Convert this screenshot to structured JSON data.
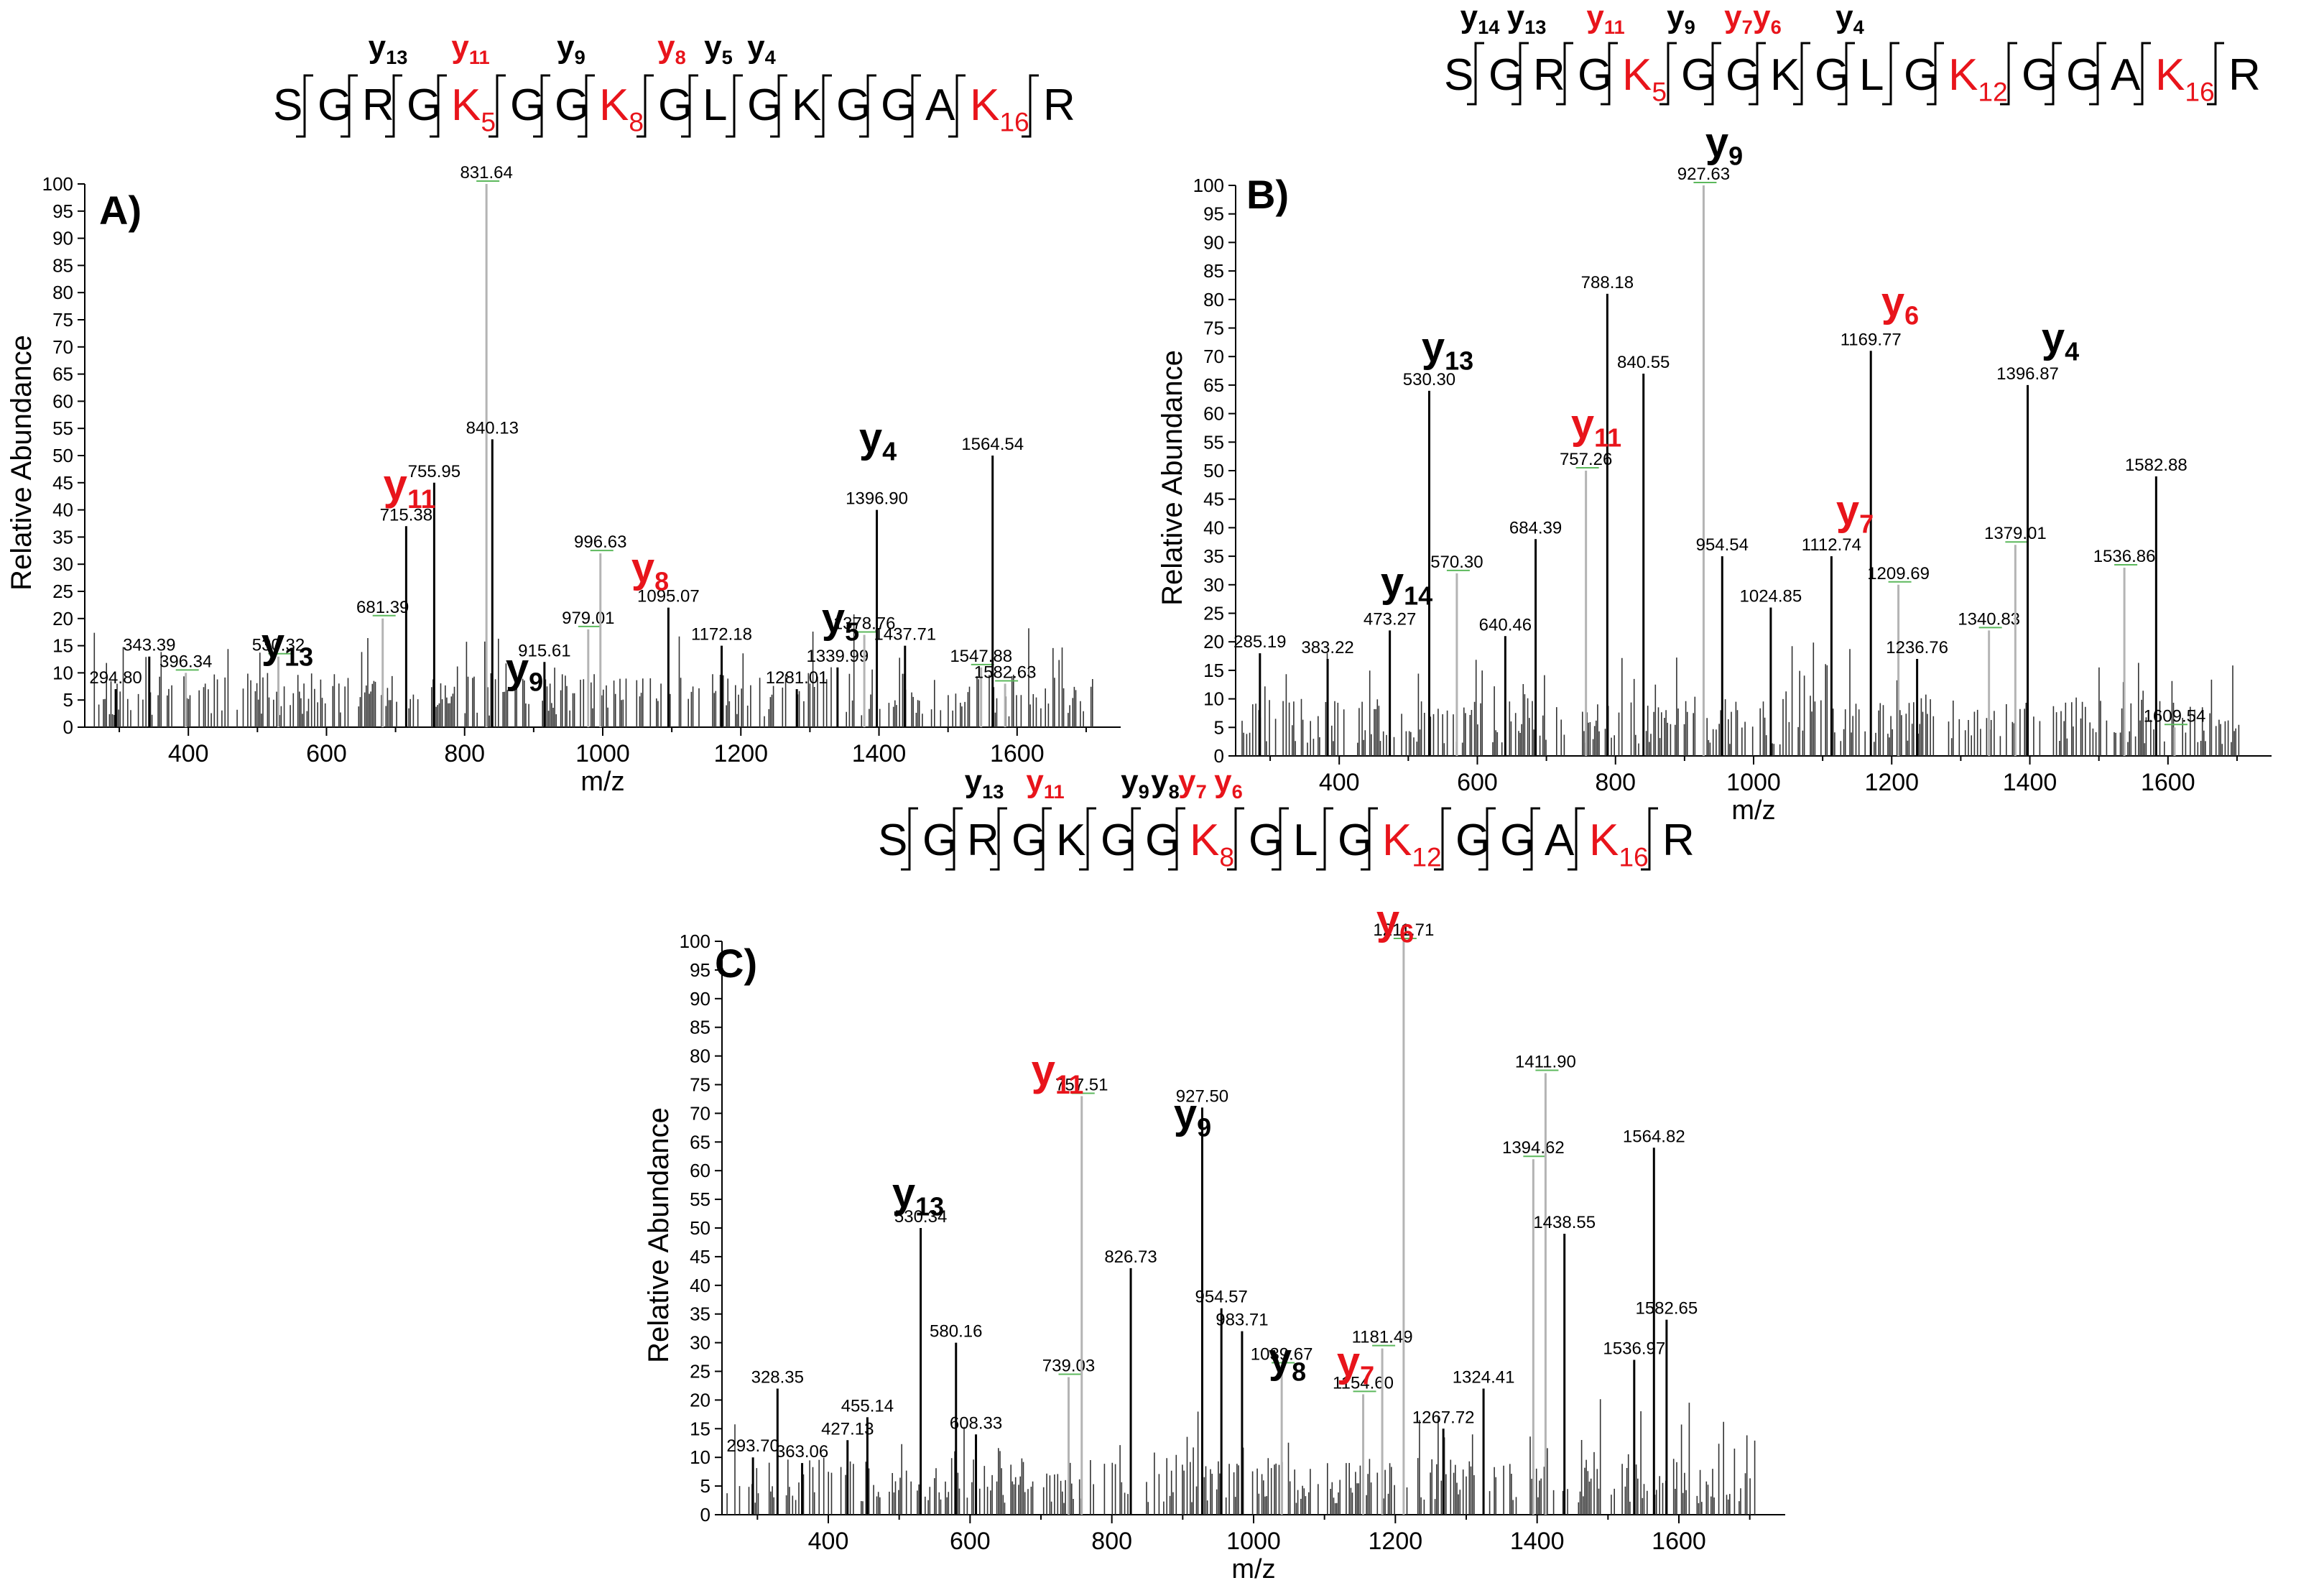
{
  "colors": {
    "black": "#000000",
    "red": "#e8141b",
    "grey": "#b4b4b4",
    "green": "#5cb85c"
  },
  "chart_data": [
    {
      "type": "bar",
      "panel_label": "A)",
      "xlabel": "m/z",
      "ylabel": "Relative Abundance",
      "xlim": [
        250,
        1750
      ],
      "ylim": [
        0,
        100
      ],
      "x_ticks": [
        400,
        600,
        800,
        1000,
        1200,
        1400,
        1600
      ],
      "y_ticks": [
        0,
        5,
        10,
        15,
        20,
        25,
        30,
        35,
        40,
        45,
        50,
        55,
        60,
        65,
        70,
        75,
        80,
        85,
        90,
        95,
        100
      ],
      "sequence": [
        {
          "aa": "S",
          "red": false
        },
        {
          "aa": "G",
          "red": false
        },
        {
          "aa": "R",
          "red": false
        },
        {
          "aa": "G",
          "red": false
        },
        {
          "aa": "K",
          "red": true,
          "sub": "5"
        },
        {
          "aa": "G",
          "red": false
        },
        {
          "aa": "G",
          "red": false
        },
        {
          "aa": "K",
          "red": true,
          "sub": "8"
        },
        {
          "aa": "G",
          "red": false
        },
        {
          "aa": "L",
          "red": false
        },
        {
          "aa": "G",
          "red": false
        },
        {
          "aa": "K",
          "red": false
        },
        {
          "aa": "G",
          "red": false
        },
        {
          "aa": "G",
          "red": false
        },
        {
          "aa": "A",
          "red": false
        },
        {
          "aa": "K",
          "red": true,
          "sub": "16"
        },
        {
          "aa": "R",
          "red": false
        }
      ],
      "sequence_ions": [
        {
          "ion": "y",
          "sub": "13",
          "red": false
        },
        {
          "ion": "y",
          "sub": "11",
          "red": true
        },
        {
          "ion": "y",
          "sub": "9",
          "red": false
        },
        {
          "ion": "y",
          "sub": "8",
          "red": true
        },
        {
          "ion": "y",
          "sub": "5",
          "red": false
        },
        {
          "ion": "y",
          "sub": "4",
          "red": false
        }
      ],
      "peaks": [
        {
          "mz": 294.8,
          "intensity": 7,
          "label": "294.80"
        },
        {
          "mz": 343.39,
          "intensity": 13,
          "label": "343.39"
        },
        {
          "mz": 396.34,
          "intensity": 10,
          "label": "396.34",
          "grey": true
        },
        {
          "mz": 530.32,
          "intensity": 13,
          "label": "530.32",
          "grey": true
        },
        {
          "mz": 681.39,
          "intensity": 20,
          "label": "681.39",
          "grey": true
        },
        {
          "mz": 715.38,
          "intensity": 37,
          "label": "715.38"
        },
        {
          "mz": 755.95,
          "intensity": 45,
          "label": "755.95"
        },
        {
          "mz": 831.64,
          "intensity": 100,
          "label": "831.64",
          "grey": true
        },
        {
          "mz": 840.13,
          "intensity": 53,
          "label": "840.13"
        },
        {
          "mz": 915.61,
          "intensity": 12,
          "label": "915.61"
        },
        {
          "mz": 979.01,
          "intensity": 18,
          "label": "979.01",
          "grey": true
        },
        {
          "mz": 996.63,
          "intensity": 32,
          "label": "996.63",
          "grey": true
        },
        {
          "mz": 1095.07,
          "intensity": 22,
          "label": "1095.07"
        },
        {
          "mz": 1172.18,
          "intensity": 15,
          "label": "1172.18"
        },
        {
          "mz": 1281.01,
          "intensity": 7,
          "label": "1281.01"
        },
        {
          "mz": 1339.99,
          "intensity": 11,
          "label": "1339.99"
        },
        {
          "mz": 1378.76,
          "intensity": 17,
          "label": "1378.76",
          "grey": true
        },
        {
          "mz": 1396.9,
          "intensity": 40,
          "label": "1396.90"
        },
        {
          "mz": 1437.71,
          "intensity": 15,
          "label": "1437.71"
        },
        {
          "mz": 1547.88,
          "intensity": 11,
          "label": "1547.88",
          "grey": true
        },
        {
          "mz": 1564.54,
          "intensity": 50,
          "label": "1564.54"
        },
        {
          "mz": 1582.63,
          "intensity": 8,
          "label": "1582.63",
          "grey": true
        }
      ],
      "ion_annotations": [
        {
          "ion": "y",
          "sub": "11",
          "red": true,
          "mz": 715.38
        },
        {
          "ion": "y",
          "sub": "13",
          "red": false,
          "mz": 530.32
        },
        {
          "ion": "y",
          "sub": "9",
          "red": false,
          "mz": 915.61
        },
        {
          "ion": "y",
          "sub": "8",
          "red": true,
          "mz": 1095.07
        },
        {
          "ion": "y",
          "sub": "5",
          "red": false,
          "mz": 1378.76
        },
        {
          "ion": "y",
          "sub": "4",
          "red": false,
          "mz": 1396.9
        }
      ]
    },
    {
      "type": "bar",
      "panel_label": "B)",
      "xlabel": "m/z",
      "ylabel": "Relative Abundance",
      "xlim": [
        250,
        1750
      ],
      "ylim": [
        0,
        100
      ],
      "x_ticks": [
        400,
        600,
        800,
        1000,
        1200,
        1400,
        1600
      ],
      "y_ticks": [
        0,
        5,
        10,
        15,
        20,
        25,
        30,
        35,
        40,
        45,
        50,
        55,
        60,
        65,
        70,
        75,
        80,
        85,
        90,
        95,
        100
      ],
      "sequence": [
        {
          "aa": "S",
          "red": false
        },
        {
          "aa": "G",
          "red": false
        },
        {
          "aa": "R",
          "red": false
        },
        {
          "aa": "G",
          "red": false
        },
        {
          "aa": "K",
          "red": true,
          "sub": "5"
        },
        {
          "aa": "G",
          "red": false
        },
        {
          "aa": "G",
          "red": false
        },
        {
          "aa": "K",
          "red": false
        },
        {
          "aa": "G",
          "red": false
        },
        {
          "aa": "L",
          "red": false
        },
        {
          "aa": "G",
          "red": false
        },
        {
          "aa": "K",
          "red": true,
          "sub": "12"
        },
        {
          "aa": "G",
          "red": false
        },
        {
          "aa": "G",
          "red": false
        },
        {
          "aa": "A",
          "red": false
        },
        {
          "aa": "K",
          "red": true,
          "sub": "16"
        },
        {
          "aa": "R",
          "red": false
        }
      ],
      "sequence_ions": [
        {
          "ion": "y",
          "sub": "14",
          "red": false
        },
        {
          "ion": "y",
          "sub": "13",
          "red": false
        },
        {
          "ion": "y",
          "sub": "11",
          "red": true
        },
        {
          "ion": "y",
          "sub": "9",
          "red": false
        },
        {
          "ion": "y",
          "sub": "7",
          "red": true
        },
        {
          "ion": "y",
          "sub": "6",
          "red": true
        },
        {
          "ion": "y",
          "sub": "4",
          "red": false
        }
      ],
      "peaks": [
        {
          "mz": 285.19,
          "intensity": 18,
          "label": "285.19"
        },
        {
          "mz": 383.22,
          "intensity": 17,
          "label": "383.22"
        },
        {
          "mz": 473.27,
          "intensity": 22,
          "label": "473.27"
        },
        {
          "mz": 530.3,
          "intensity": 64,
          "label": "530.30"
        },
        {
          "mz": 570.3,
          "intensity": 32,
          "label": "570.30",
          "grey": true
        },
        {
          "mz": 640.46,
          "intensity": 21,
          "label": "640.46"
        },
        {
          "mz": 684.39,
          "intensity": 38,
          "label": "684.39"
        },
        {
          "mz": 757.26,
          "intensity": 50,
          "label": "757.26",
          "grey": true
        },
        {
          "mz": 788.18,
          "intensity": 81,
          "label": "788.18"
        },
        {
          "mz": 840.55,
          "intensity": 67,
          "label": "840.55"
        },
        {
          "mz": 927.63,
          "intensity": 100,
          "label": "927.63",
          "grey": true
        },
        {
          "mz": 954.54,
          "intensity": 35,
          "label": "954.54"
        },
        {
          "mz": 1024.85,
          "intensity": 26,
          "label": "1024.85"
        },
        {
          "mz": 1112.74,
          "intensity": 35,
          "label": "1112.74"
        },
        {
          "mz": 1169.77,
          "intensity": 71,
          "label": "1169.77"
        },
        {
          "mz": 1209.69,
          "intensity": 30,
          "label": "1209.69",
          "grey": true
        },
        {
          "mz": 1236.76,
          "intensity": 17,
          "label": "1236.76"
        },
        {
          "mz": 1340.83,
          "intensity": 22,
          "label": "1340.83",
          "grey": true
        },
        {
          "mz": 1379.01,
          "intensity": 37,
          "label": "1379.01",
          "grey": true
        },
        {
          "mz": 1396.87,
          "intensity": 65,
          "label": "1396.87"
        },
        {
          "mz": 1536.86,
          "intensity": 33,
          "label": "1536.86",
          "grey": true
        },
        {
          "mz": 1582.88,
          "intensity": 49,
          "label": "1582.88"
        },
        {
          "mz": 1609.54,
          "intensity": 5,
          "label": "1609.54",
          "grey": true
        }
      ],
      "ion_annotations": [
        {
          "ion": "y",
          "sub": "9",
          "red": false,
          "mz": 927.63
        },
        {
          "ion": "y",
          "sub": "13",
          "red": false,
          "mz": 530.3
        },
        {
          "ion": "y",
          "sub": "11",
          "red": true,
          "mz": 757.26
        },
        {
          "ion": "y",
          "sub": "14",
          "red": false,
          "mz": 473.27
        },
        {
          "ion": "y",
          "sub": "6",
          "red": true,
          "mz": 1169.77
        },
        {
          "ion": "y",
          "sub": "7",
          "red": true,
          "mz": 1112.74
        },
        {
          "ion": "y",
          "sub": "4",
          "red": false,
          "mz": 1396.87
        }
      ]
    },
    {
      "type": "bar",
      "panel_label": "C)",
      "xlabel": "m/z",
      "ylabel": "Relative Abundance",
      "xlim": [
        250,
        1750
      ],
      "ylim": [
        0,
        100
      ],
      "x_ticks": [
        400,
        600,
        800,
        1000,
        1200,
        1400,
        1600
      ],
      "y_ticks": [
        0,
        5,
        10,
        15,
        20,
        25,
        30,
        35,
        40,
        45,
        50,
        55,
        60,
        65,
        70,
        75,
        80,
        85,
        90,
        95,
        100
      ],
      "sequence": [
        {
          "aa": "S",
          "red": false
        },
        {
          "aa": "G",
          "red": false
        },
        {
          "aa": "R",
          "red": false
        },
        {
          "aa": "G",
          "red": false
        },
        {
          "aa": "K",
          "red": false
        },
        {
          "aa": "G",
          "red": false
        },
        {
          "aa": "G",
          "red": false
        },
        {
          "aa": "K",
          "red": true,
          "sub": "8"
        },
        {
          "aa": "G",
          "red": false
        },
        {
          "aa": "L",
          "red": false
        },
        {
          "aa": "G",
          "red": false
        },
        {
          "aa": "K",
          "red": true,
          "sub": "12"
        },
        {
          "aa": "G",
          "red": false
        },
        {
          "aa": "G",
          "red": false
        },
        {
          "aa": "A",
          "red": false
        },
        {
          "aa": "K",
          "red": true,
          "sub": "16"
        },
        {
          "aa": "R",
          "red": false
        }
      ],
      "sequence_ions": [
        {
          "ion": "y",
          "sub": "13",
          "red": false
        },
        {
          "ion": "y",
          "sub": "11",
          "red": true
        },
        {
          "ion": "y",
          "sub": "9",
          "red": false
        },
        {
          "ion": "y",
          "sub": "8",
          "red": false
        },
        {
          "ion": "y",
          "sub": "7",
          "red": true
        },
        {
          "ion": "y",
          "sub": "6",
          "red": true
        }
      ],
      "peaks": [
        {
          "mz": 293.7,
          "intensity": 10,
          "label": "293.70"
        },
        {
          "mz": 328.35,
          "intensity": 22,
          "label": "328.35"
        },
        {
          "mz": 363.06,
          "intensity": 9,
          "label": "363.06"
        },
        {
          "mz": 427.13,
          "intensity": 13,
          "label": "427.13"
        },
        {
          "mz": 455.14,
          "intensity": 17,
          "label": "455.14"
        },
        {
          "mz": 530.34,
          "intensity": 50,
          "label": "530.34"
        },
        {
          "mz": 580.16,
          "intensity": 30,
          "label": "580.16"
        },
        {
          "mz": 608.33,
          "intensity": 14,
          "label": "608.33"
        },
        {
          "mz": 739.03,
          "intensity": 24,
          "label": "739.03",
          "grey": true
        },
        {
          "mz": 757.51,
          "intensity": 73,
          "label": "757.51",
          "grey": true
        },
        {
          "mz": 826.73,
          "intensity": 43,
          "label": "826.73"
        },
        {
          "mz": 927.5,
          "intensity": 71,
          "label": "927.50"
        },
        {
          "mz": 954.57,
          "intensity": 36,
          "label": "954.57"
        },
        {
          "mz": 983.71,
          "intensity": 32,
          "label": "983.71"
        },
        {
          "mz": 1039.67,
          "intensity": 26,
          "label": "1039.67",
          "grey": true
        },
        {
          "mz": 1154.6,
          "intensity": 21,
          "label": "1154.60",
          "grey": true
        },
        {
          "mz": 1181.49,
          "intensity": 29,
          "label": "1181.49",
          "grey": true
        },
        {
          "mz": 1211.71,
          "intensity": 100,
          "label": "1211.71",
          "grey": true
        },
        {
          "mz": 1267.72,
          "intensity": 15,
          "label": "1267.72"
        },
        {
          "mz": 1324.41,
          "intensity": 22,
          "label": "1324.41"
        },
        {
          "mz": 1394.62,
          "intensity": 62,
          "label": "1394.62",
          "grey": true
        },
        {
          "mz": 1411.9,
          "intensity": 77,
          "label": "1411.90",
          "grey": true
        },
        {
          "mz": 1438.55,
          "intensity": 49,
          "label": "1438.55"
        },
        {
          "mz": 1536.97,
          "intensity": 27,
          "label": "1536.97"
        },
        {
          "mz": 1564.82,
          "intensity": 64,
          "label": "1564.82"
        },
        {
          "mz": 1582.65,
          "intensity": 34,
          "label": "1582.65"
        }
      ],
      "ion_annotations": [
        {
          "ion": "y",
          "sub": "11",
          "red": true,
          "mz": 757.51
        },
        {
          "ion": "y",
          "sub": "9",
          "red": false,
          "mz": 927.5
        },
        {
          "ion": "y",
          "sub": "13",
          "red": false,
          "mz": 530.34
        },
        {
          "ion": "y",
          "sub": "6",
          "red": true,
          "mz": 1211.71
        },
        {
          "ion": "y",
          "sub": "8",
          "red": false,
          "mz": 1039.67
        },
        {
          "ion": "y",
          "sub": "7",
          "red": true,
          "mz": 1154.6
        }
      ]
    }
  ]
}
